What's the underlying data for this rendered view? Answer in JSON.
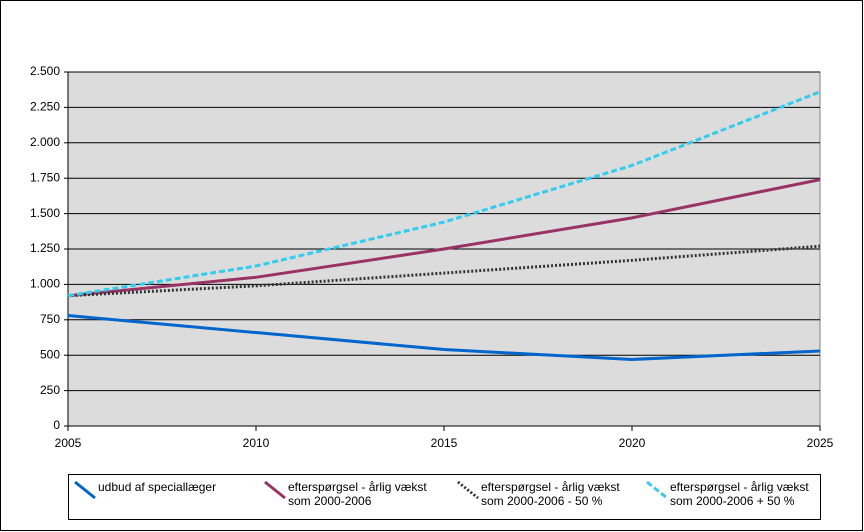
{
  "chart_data": {
    "type": "line",
    "x": [
      2005,
      2010,
      2015,
      2020,
      2025
    ],
    "series": [
      {
        "name": "udbud af speciallæger",
        "color": "#0066cc",
        "dash": "none",
        "values": [
          780,
          660,
          540,
          470,
          530
        ]
      },
      {
        "name": "efterspørgsel - årlig vækst som 2000-2006",
        "color": "#993366",
        "dash": "none",
        "values": [
          920,
          1050,
          1250,
          1470,
          1740
        ]
      },
      {
        "name": "efterspørgsel - årlig vækst som 2000-2006 - 50 %",
        "color": "#333333",
        "dash": "2,2",
        "values": [
          920,
          990,
          1080,
          1170,
          1270
        ]
      },
      {
        "name": "efterspørgsel - årlig vækst som 2000-2006 + 50 %",
        "color": "#33ccee",
        "dash": "6,3",
        "values": [
          920,
          1130,
          1440,
          1840,
          2360
        ]
      }
    ],
    "xlim": [
      2005,
      2025
    ],
    "xticks": [
      2005,
      2010,
      2015,
      2020,
      2025
    ],
    "ylim": [
      0,
      2500
    ],
    "yticks": [
      0,
      250,
      500,
      750,
      {
        "value": 1000,
        "label": "1.000"
      },
      {
        "value": 1250,
        "label": "1.250"
      },
      {
        "value": 1500,
        "label": "1.500"
      },
      {
        "value": 1750,
        "label": "1.750"
      },
      {
        "value": 2000,
        "label": "2.000"
      },
      {
        "value": 2250,
        "label": "2.250"
      },
      {
        "value": 2500,
        "label": "2.500"
      }
    ],
    "grid": true,
    "plot_background": "#dcdcdc",
    "legend": "bottom"
  }
}
